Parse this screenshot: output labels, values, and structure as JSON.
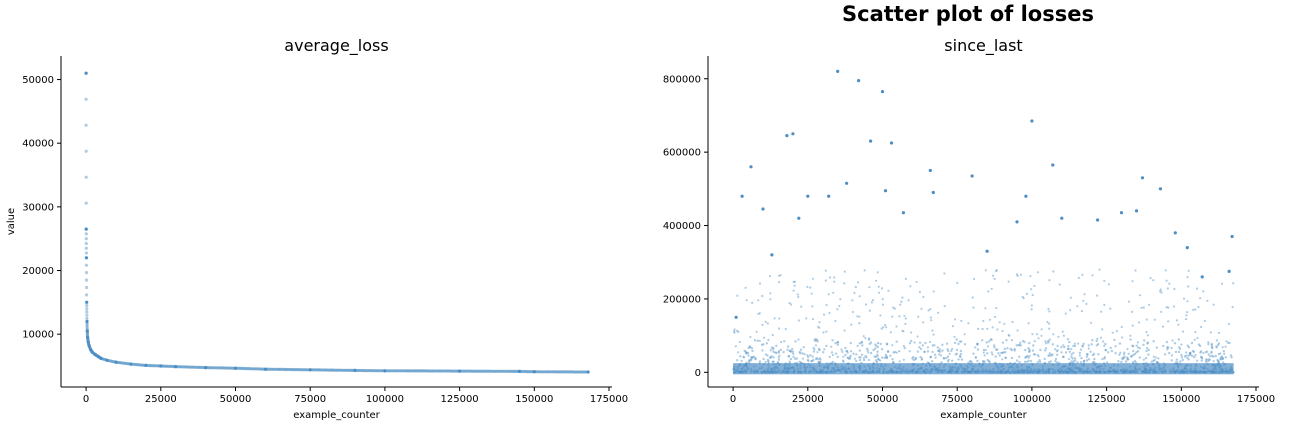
{
  "figure": {
    "suptitle": "Scatter plot of losses"
  },
  "chart_data": [
    {
      "type": "scatter",
      "title": "average_loss",
      "xlabel": "example_counter",
      "ylabel": "value",
      "xlim": [
        -8400,
        176000
      ],
      "ylim": [
        1700,
        53700
      ],
      "xticks": [
        0,
        25000,
        50000,
        75000,
        100000,
        125000,
        150000,
        175000
      ],
      "xtick_labels": [
        "0",
        "25000",
        "50000",
        "75000",
        "100000",
        "125000",
        "150000",
        "175000"
      ],
      "yticks": [
        10000,
        20000,
        30000,
        40000,
        50000
      ],
      "ytick_labels": [
        "10000",
        "20000",
        "30000",
        "40000",
        "50000"
      ],
      "grid": false,
      "color": "#4C8DC4",
      "series": [
        {
          "x": [
            0,
            50,
            100,
            200,
            300,
            400,
            500,
            700,
            1000,
            1500,
            2000,
            3000,
            4000,
            5000,
            7000,
            10000,
            15000,
            20000,
            25000,
            30000,
            40000,
            50000,
            60000,
            75000,
            90000,
            100000,
            125000,
            145000,
            150000,
            168000
          ],
          "y": [
            51000,
            26500,
            22000,
            15000,
            12000,
            10500,
            9500,
            8800,
            8200,
            7600,
            7200,
            6800,
            6500,
            6200,
            5900,
            5600,
            5300,
            5100,
            5000,
            4900,
            4750,
            4650,
            4500,
            4400,
            4300,
            4250,
            4200,
            4150,
            4100,
            4050
          ]
        }
      ]
    },
    {
      "type": "scatter",
      "title": "since_last",
      "xlabel": "example_counter",
      "ylabel": "",
      "xlim": [
        -8400,
        176000
      ],
      "ylim": [
        -40000,
        862000
      ],
      "xticks": [
        0,
        25000,
        50000,
        75000,
        100000,
        125000,
        150000,
        175000
      ],
      "xtick_labels": [
        "0",
        "25000",
        "50000",
        "75000",
        "100000",
        "125000",
        "150000",
        "175000"
      ],
      "yticks": [
        0,
        200000,
        400000,
        600000,
        800000
      ],
      "ytick_labels": [
        "0",
        "200000",
        "400000",
        "600000",
        "800000"
      ],
      "grid": false,
      "color": "#4C8DC4",
      "series": [
        {
          "x": [
            1000,
            3000,
            6000,
            10000,
            13000,
            18000,
            20000,
            22000,
            25000,
            32000,
            35000,
            38000,
            42000,
            46000,
            50000,
            51000,
            53000,
            57000,
            66000,
            67000,
            80000,
            85000,
            95000,
            98000,
            100000,
            107000,
            110000,
            122000,
            130000,
            135000,
            137000,
            143000,
            148000,
            152000,
            157000,
            166000,
            167000
          ],
          "y": [
            150000,
            480000,
            560000,
            445000,
            320000,
            645000,
            650000,
            420000,
            480000,
            480000,
            820000,
            515000,
            795000,
            630000,
            765000,
            495000,
            625000,
            435000,
            550000,
            490000,
            535000,
            330000,
            410000,
            480000,
            685000,
            565000,
            420000,
            415000,
            435000,
            440000,
            530000,
            500000,
            380000,
            340000,
            260000,
            275000,
            370000
          ]
        }
      ]
    }
  ]
}
